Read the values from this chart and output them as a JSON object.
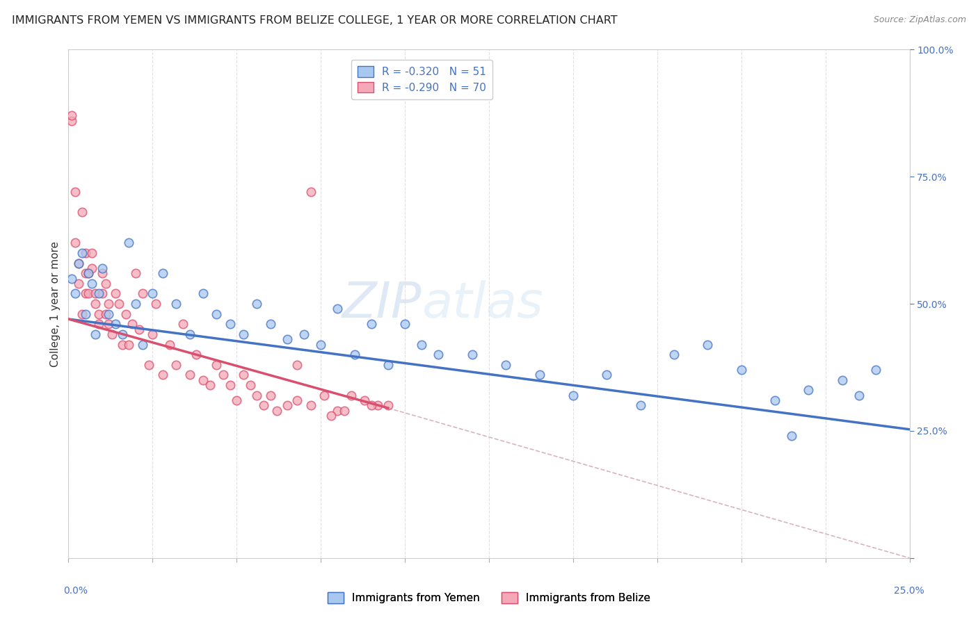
{
  "title": "IMMIGRANTS FROM YEMEN VS IMMIGRANTS FROM BELIZE COLLEGE, 1 YEAR OR MORE CORRELATION CHART",
  "source": "Source: ZipAtlas.com",
  "ylabel": "College, 1 year or more",
  "right_yticks": [
    0.0,
    0.25,
    0.5,
    0.75,
    1.0
  ],
  "right_yticklabels": [
    "",
    "25.0%",
    "50.0%",
    "75.0%",
    "100.0%"
  ],
  "xlim": [
    0.0,
    0.25
  ],
  "ylim": [
    0.0,
    1.0
  ],
  "legend_r_yemen": "-0.320",
  "legend_n_yemen": "51",
  "legend_r_belize": "-0.290",
  "legend_n_belize": "70",
  "color_yemen": "#a8c8f0",
  "color_belize": "#f4a8b8",
  "color_yemen_line": "#4472c4",
  "color_belize_line": "#d94f6e",
  "color_ref_line": "#d8b4be",
  "yemen_x": [
    0.001,
    0.002,
    0.003,
    0.004,
    0.005,
    0.006,
    0.007,
    0.008,
    0.009,
    0.01,
    0.012,
    0.014,
    0.016,
    0.018,
    0.02,
    0.022,
    0.025,
    0.028,
    0.032,
    0.036,
    0.04,
    0.044,
    0.048,
    0.052,
    0.056,
    0.06,
    0.065,
    0.07,
    0.075,
    0.08,
    0.085,
    0.09,
    0.095,
    0.1,
    0.105,
    0.11,
    0.12,
    0.13,
    0.14,
    0.15,
    0.16,
    0.17,
    0.18,
    0.19,
    0.2,
    0.21,
    0.215,
    0.22,
    0.23,
    0.235,
    0.24
  ],
  "yemen_y": [
    0.55,
    0.52,
    0.58,
    0.6,
    0.48,
    0.56,
    0.54,
    0.44,
    0.52,
    0.57,
    0.48,
    0.46,
    0.44,
    0.62,
    0.5,
    0.42,
    0.52,
    0.56,
    0.5,
    0.44,
    0.52,
    0.48,
    0.46,
    0.44,
    0.5,
    0.46,
    0.43,
    0.44,
    0.42,
    0.49,
    0.4,
    0.46,
    0.38,
    0.46,
    0.42,
    0.4,
    0.4,
    0.38,
    0.36,
    0.32,
    0.36,
    0.3,
    0.4,
    0.42,
    0.37,
    0.31,
    0.24,
    0.33,
    0.35,
    0.32,
    0.37
  ],
  "belize_x": [
    0.001,
    0.001,
    0.002,
    0.002,
    0.003,
    0.003,
    0.004,
    0.004,
    0.005,
    0.005,
    0.005,
    0.006,
    0.006,
    0.007,
    0.007,
    0.008,
    0.008,
    0.009,
    0.009,
    0.01,
    0.01,
    0.011,
    0.011,
    0.012,
    0.012,
    0.013,
    0.014,
    0.015,
    0.016,
    0.017,
    0.018,
    0.019,
    0.02,
    0.021,
    0.022,
    0.024,
    0.025,
    0.026,
    0.028,
    0.03,
    0.032,
    0.034,
    0.036,
    0.038,
    0.04,
    0.042,
    0.044,
    0.046,
    0.048,
    0.05,
    0.052,
    0.054,
    0.056,
    0.058,
    0.06,
    0.062,
    0.065,
    0.068,
    0.072,
    0.076,
    0.08,
    0.084,
    0.088,
    0.092,
    0.095,
    0.068,
    0.072,
    0.078,
    0.082,
    0.09
  ],
  "belize_y": [
    0.86,
    0.87,
    0.62,
    0.72,
    0.54,
    0.58,
    0.68,
    0.48,
    0.56,
    0.52,
    0.6,
    0.56,
    0.52,
    0.57,
    0.6,
    0.52,
    0.5,
    0.48,
    0.46,
    0.52,
    0.56,
    0.48,
    0.54,
    0.46,
    0.5,
    0.44,
    0.52,
    0.5,
    0.42,
    0.48,
    0.42,
    0.46,
    0.56,
    0.45,
    0.52,
    0.38,
    0.44,
    0.5,
    0.36,
    0.42,
    0.38,
    0.46,
    0.36,
    0.4,
    0.35,
    0.34,
    0.38,
    0.36,
    0.34,
    0.31,
    0.36,
    0.34,
    0.32,
    0.3,
    0.32,
    0.29,
    0.3,
    0.31,
    0.3,
    0.32,
    0.29,
    0.32,
    0.31,
    0.3,
    0.3,
    0.38,
    0.72,
    0.28,
    0.29,
    0.3
  ],
  "yemen_trendline_x": [
    0.0,
    0.25
  ],
  "yemen_trendline_y": [
    0.47,
    0.253
  ],
  "belize_trendline_x": [
    0.0,
    0.095
  ],
  "belize_trendline_y": [
    0.47,
    0.295
  ],
  "ref_line_x": [
    0.095,
    0.25
  ],
  "ref_line_y": [
    0.295,
    0.0
  ],
  "background_color": "#ffffff",
  "grid_color": "#e0e0e0",
  "watermark_zip": "ZIP",
  "watermark_atlas": "atlas",
  "xtick_positions": [
    0.0,
    0.025,
    0.05,
    0.075,
    0.1,
    0.125,
    0.15,
    0.175,
    0.2,
    0.225,
    0.25
  ]
}
